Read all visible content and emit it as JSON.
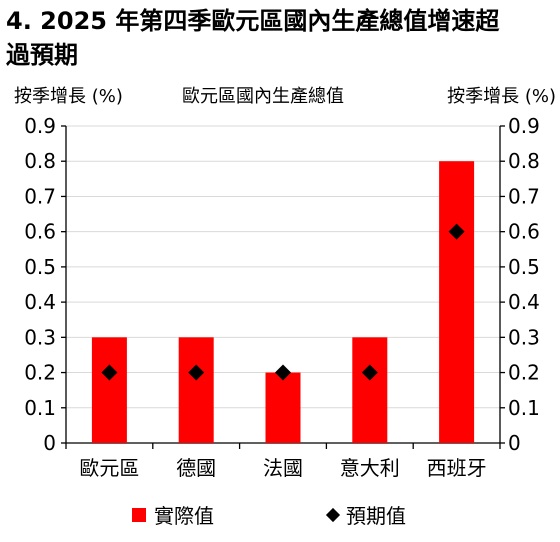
{
  "title": {
    "line1": "4. 2025 年第四季歐元區國內生產總值增速超",
    "line2": "過預期"
  },
  "chart_data": {
    "type": "bar",
    "title": "歐元區國內生產總值",
    "ylabel_left": "按季增長 (%)",
    "ylabel_right": "按季增長 (%)",
    "categories": [
      "歐元區",
      "德國",
      "法國",
      "意大利",
      "西班牙"
    ],
    "series": [
      {
        "name": "實際值",
        "type": "bar",
        "color": "#ff0000",
        "values": [
          0.3,
          0.3,
          0.2,
          0.3,
          0.8
        ]
      },
      {
        "name": "預期值",
        "type": "scatter",
        "marker": "diamond",
        "color": "#000000",
        "values": [
          0.2,
          0.2,
          0.2,
          0.2,
          0.6
        ]
      }
    ],
    "ylim": [
      0,
      0.9
    ],
    "yticks": [
      "0",
      "0.1",
      "0.2",
      "0.3",
      "0.4",
      "0.5",
      "0.6",
      "0.7",
      "0.8",
      "0.9"
    ],
    "grid": true,
    "legend_position": "bottom"
  }
}
